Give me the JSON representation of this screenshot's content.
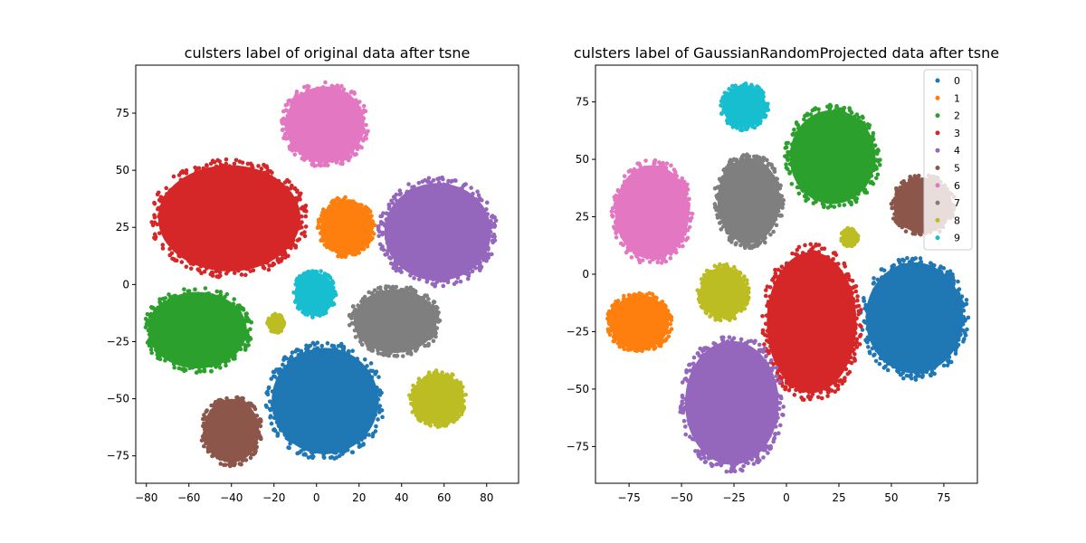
{
  "chart_data": [
    {
      "type": "scatter",
      "title": "culsters label of original data after tsne",
      "xlim": [
        -85,
        95
      ],
      "ylim": [
        -87,
        96
      ],
      "xticks": [
        -80,
        -60,
        -40,
        -20,
        0,
        20,
        40,
        60,
        80
      ],
      "yticks": [
        -75,
        -50,
        -25,
        0,
        25,
        50,
        75
      ],
      "grid": false,
      "legend": null,
      "clusters": [
        {
          "label": "0",
          "color": "#1f77b4",
          "center": [
            4,
            -51
          ],
          "radius": [
            27,
            25
          ]
        },
        {
          "label": "1",
          "color": "#ff7f0e",
          "center": [
            14,
            25
          ],
          "radius": [
            13,
            13
          ]
        },
        {
          "label": "2",
          "color": "#2ca02c",
          "center": [
            -56,
            -20
          ],
          "radius": [
            25,
            18
          ]
        },
        {
          "label": "3",
          "color": "#d62728",
          "center": [
            -41,
            29
          ],
          "radius": [
            36,
            25
          ]
        },
        {
          "label": "4",
          "color": "#9467bd",
          "center": [
            57,
            23
          ],
          "radius": [
            27,
            23
          ]
        },
        {
          "label": "5",
          "color": "#8c564b",
          "center": [
            -40,
            -64
          ],
          "radius": [
            14,
            15
          ]
        },
        {
          "label": "6",
          "color": "#e377c2",
          "center": [
            4,
            70
          ],
          "radius": [
            20,
            18
          ]
        },
        {
          "label": "7",
          "color": "#7f7f7f",
          "center": [
            37,
            -16
          ],
          "radius": [
            21,
            15
          ]
        },
        {
          "label": "8",
          "color": "#bcbd22",
          "center": [
            57,
            -50
          ],
          "radius": [
            13,
            12
          ]
        },
        {
          "label": "9",
          "color": "#17becf",
          "center": [
            -1,
            -4
          ],
          "radius": [
            10,
            10
          ]
        },
        {
          "label": "8",
          "color": "#bcbd22",
          "center": [
            -19,
            -17
          ],
          "radius": [
            4,
            4
          ]
        }
      ]
    },
    {
      "type": "scatter",
      "title": "culsters label of GaussianRandomProjected data after tsne",
      "xlim": [
        -91,
        91
      ],
      "ylim": [
        -91,
        91
      ],
      "xticks": [
        -75,
        -50,
        -25,
        0,
        25,
        50,
        75
      ],
      "yticks": [
        -75,
        -50,
        -25,
        0,
        25,
        50,
        75
      ],
      "grid": false,
      "legend": {
        "placement": "top-right",
        "entries": [
          {
            "label": "0",
            "color": "#1f77b4"
          },
          {
            "label": "1",
            "color": "#ff7f0e"
          },
          {
            "label": "2",
            "color": "#2ca02c"
          },
          {
            "label": "3",
            "color": "#d62728"
          },
          {
            "label": "4",
            "color": "#9467bd"
          },
          {
            "label": "5",
            "color": "#8c564b"
          },
          {
            "label": "6",
            "color": "#e377c2"
          },
          {
            "label": "7",
            "color": "#7f7f7f"
          },
          {
            "label": "8",
            "color": "#bcbd22"
          },
          {
            "label": "9",
            "color": "#17becf"
          }
        ]
      },
      "clusters": [
        {
          "label": "0",
          "color": "#1f77b4",
          "center": [
            61,
            -19
          ],
          "radius": [
            25,
            26
          ]
        },
        {
          "label": "1",
          "color": "#ff7f0e",
          "center": [
            -70,
            -21
          ],
          "radius": [
            15,
            13
          ]
        },
        {
          "label": "2",
          "color": "#2ca02c",
          "center": [
            22,
            51
          ],
          "radius": [
            22,
            22
          ]
        },
        {
          "label": "3",
          "color": "#d62728",
          "center": [
            12,
            -21
          ],
          "radius": [
            23,
            33
          ]
        },
        {
          "label": "4",
          "color": "#9467bd",
          "center": [
            -26,
            -56
          ],
          "radius": [
            24,
            29
          ]
        },
        {
          "label": "5",
          "color": "#8c564b",
          "center": [
            65,
            30
          ],
          "radius": [
            15,
            13
          ]
        },
        {
          "label": "6",
          "color": "#e377c2",
          "center": [
            -64,
            27
          ],
          "radius": [
            19,
            22
          ]
        },
        {
          "label": "7",
          "color": "#7f7f7f",
          "center": [
            -18,
            32
          ],
          "radius": [
            16,
            20
          ]
        },
        {
          "label": "8",
          "color": "#bcbd22",
          "center": [
            -30,
            -8
          ],
          "radius": [
            12,
            12
          ]
        },
        {
          "label": "9",
          "color": "#17becf",
          "center": [
            -20,
            73
          ],
          "radius": [
            11,
            10
          ]
        },
        {
          "label": "8",
          "color": "#bcbd22",
          "center": [
            30,
            16
          ],
          "radius": [
            4,
            4
          ]
        }
      ]
    }
  ]
}
